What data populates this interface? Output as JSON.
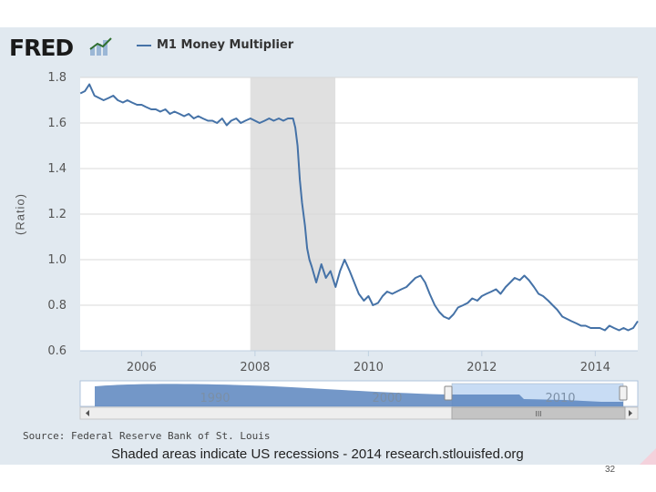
{
  "header": {
    "logo_text": "FRED",
    "legend_label": "M1 Money Multiplier"
  },
  "colors": {
    "series": "#4572a7",
    "recession": "#e0e0e0",
    "panel": "#e1e9f0",
    "navigator_fill": "#5b85be",
    "navigator_window": "#c8dcf4"
  },
  "chart_data": {
    "type": "line",
    "title": "",
    "xlabel": "",
    "ylabel": "(Ratio)",
    "xlim": [
      2004.917,
      2014.75
    ],
    "ylim": [
      0.6,
      1.8
    ],
    "x_ticks": [
      "2006",
      "2008",
      "2010",
      "2012",
      "2014"
    ],
    "y_ticks": [
      "0.6",
      "0.8",
      "1.0",
      "1.2",
      "1.4",
      "1.6",
      "1.8"
    ],
    "grid": true,
    "legend": "top-left",
    "recession_shading": [
      {
        "start": 2007.917,
        "end": 2009.417
      }
    ],
    "series": [
      {
        "name": "M1 Money Multiplier",
        "x": [
          2004.92,
          2005.0,
          2005.08,
          2005.17,
          2005.25,
          2005.33,
          2005.42,
          2005.5,
          2005.58,
          2005.67,
          2005.75,
          2005.83,
          2005.92,
          2006.0,
          2006.08,
          2006.17,
          2006.25,
          2006.33,
          2006.42,
          2006.5,
          2006.58,
          2006.67,
          2006.75,
          2006.83,
          2006.92,
          2007.0,
          2007.08,
          2007.17,
          2007.25,
          2007.33,
          2007.42,
          2007.5,
          2007.58,
          2007.67,
          2007.75,
          2007.83,
          2007.92,
          2008.0,
          2008.08,
          2008.17,
          2008.25,
          2008.33,
          2008.42,
          2008.5,
          2008.58,
          2008.67,
          2008.71,
          2008.75,
          2008.79,
          2008.83,
          2008.88,
          2008.92,
          2008.96,
          2009.0,
          2009.08,
          2009.17,
          2009.25,
          2009.33,
          2009.42,
          2009.5,
          2009.58,
          2009.67,
          2009.75,
          2009.83,
          2009.92,
          2010.0,
          2010.08,
          2010.17,
          2010.25,
          2010.33,
          2010.42,
          2010.5,
          2010.58,
          2010.67,
          2010.75,
          2010.83,
          2010.92,
          2011.0,
          2011.08,
          2011.17,
          2011.25,
          2011.33,
          2011.42,
          2011.5,
          2011.58,
          2011.67,
          2011.75,
          2011.83,
          2011.92,
          2012.0,
          2012.08,
          2012.17,
          2012.25,
          2012.33,
          2012.42,
          2012.5,
          2012.58,
          2012.67,
          2012.75,
          2012.83,
          2012.92,
          2013.0,
          2013.08,
          2013.17,
          2013.25,
          2013.33,
          2013.42,
          2013.5,
          2013.58,
          2013.67,
          2013.75,
          2013.83,
          2013.92,
          2014.0,
          2014.08,
          2014.17,
          2014.25,
          2014.33,
          2014.42,
          2014.5,
          2014.58,
          2014.67,
          2014.75
        ],
        "y": [
          1.73,
          1.74,
          1.77,
          1.72,
          1.71,
          1.7,
          1.71,
          1.72,
          1.7,
          1.69,
          1.7,
          1.69,
          1.68,
          1.68,
          1.67,
          1.66,
          1.66,
          1.65,
          1.66,
          1.64,
          1.65,
          1.64,
          1.63,
          1.64,
          1.62,
          1.63,
          1.62,
          1.61,
          1.61,
          1.6,
          1.62,
          1.59,
          1.61,
          1.62,
          1.6,
          1.61,
          1.62,
          1.61,
          1.6,
          1.61,
          1.62,
          1.61,
          1.62,
          1.61,
          1.62,
          1.62,
          1.58,
          1.5,
          1.35,
          1.25,
          1.15,
          1.05,
          1.0,
          0.97,
          0.9,
          0.98,
          0.92,
          0.95,
          0.88,
          0.95,
          1.0,
          0.95,
          0.9,
          0.85,
          0.82,
          0.84,
          0.8,
          0.81,
          0.84,
          0.86,
          0.85,
          0.86,
          0.87,
          0.88,
          0.9,
          0.92,
          0.93,
          0.9,
          0.85,
          0.8,
          0.77,
          0.75,
          0.74,
          0.76,
          0.79,
          0.8,
          0.81,
          0.83,
          0.82,
          0.84,
          0.85,
          0.86,
          0.87,
          0.85,
          0.88,
          0.9,
          0.92,
          0.91,
          0.93,
          0.91,
          0.88,
          0.85,
          0.84,
          0.82,
          0.8,
          0.78,
          0.75,
          0.74,
          0.73,
          0.72,
          0.71,
          0.71,
          0.7,
          0.7,
          0.7,
          0.69,
          0.71,
          0.7,
          0.69,
          0.7,
          0.69,
          0.7,
          0.73
        ]
      }
    ],
    "navigator": {
      "labels": [
        "1990",
        "2000",
        "2010"
      ],
      "scrollbar_label": "III"
    }
  },
  "footer": {
    "source": "Source: Federal Reserve Bank of St. Louis",
    "note": "Shaded areas indicate US recessions - 2014 research.stlouisfed.org",
    "page_number": "32"
  }
}
